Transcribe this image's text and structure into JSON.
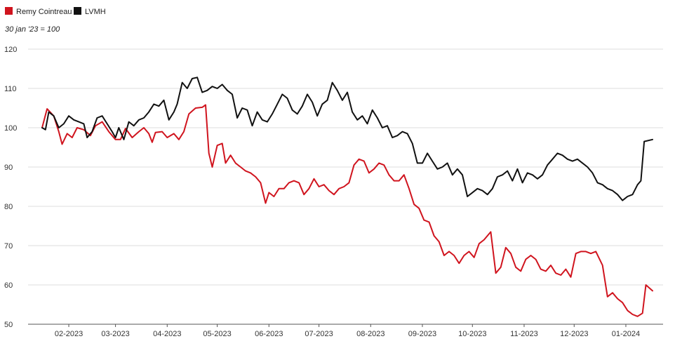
{
  "chart_data": {
    "type": "line",
    "subtitle": "30 jan '23 = 100",
    "xlim": [
      "2023-01-30",
      "2024-01-31"
    ],
    "ylim": [
      50,
      120
    ],
    "y_ticks": [
      50,
      60,
      70,
      80,
      90,
      100,
      110,
      120
    ],
    "x_ticks": [
      {
        "date": "2023-02-15",
        "label": "02-2023"
      },
      {
        "date": "2023-03-15",
        "label": "03-2023"
      },
      {
        "date": "2023-04-15",
        "label": "04-2023"
      },
      {
        "date": "2023-05-15",
        "label": "05-2023"
      },
      {
        "date": "2023-06-15",
        "label": "06-2023"
      },
      {
        "date": "2023-07-15",
        "label": "07-2023"
      },
      {
        "date": "2023-08-15",
        "label": "08-2023"
      },
      {
        "date": "2023-09-15",
        "label": "09-2023"
      },
      {
        "date": "2023-10-15",
        "label": "10-2023"
      },
      {
        "date": "2023-11-15",
        "label": "11-2023"
      },
      {
        "date": "2023-12-15",
        "label": "12-2023"
      },
      {
        "date": "2024-01-15",
        "label": "01-2024"
      }
    ],
    "grid": "horizontal",
    "legend_position": "top-left",
    "series": [
      {
        "name": "Remy Cointreau",
        "color": "#d0141e",
        "points": [
          [
            "2023-01-30",
            100.0
          ],
          [
            "2023-02-02",
            104.8
          ],
          [
            "2023-02-06",
            103.0
          ],
          [
            "2023-02-09",
            99.0
          ],
          [
            "2023-02-11",
            95.8
          ],
          [
            "2023-02-14",
            98.5
          ],
          [
            "2023-02-17",
            97.5
          ],
          [
            "2023-02-20",
            100.0
          ],
          [
            "2023-02-24",
            99.5
          ],
          [
            "2023-02-28",
            98.0
          ],
          [
            "2023-03-03",
            100.5
          ],
          [
            "2023-03-07",
            101.5
          ],
          [
            "2023-03-11",
            99.0
          ],
          [
            "2023-03-15",
            97.0
          ],
          [
            "2023-03-18",
            97.0
          ],
          [
            "2023-03-21",
            99.8
          ],
          [
            "2023-03-25",
            97.5
          ],
          [
            "2023-03-29",
            99.0
          ],
          [
            "2023-04-01",
            100.0
          ],
          [
            "2023-04-04",
            98.5
          ],
          [
            "2023-04-06",
            96.3
          ],
          [
            "2023-04-08",
            98.8
          ],
          [
            "2023-04-12",
            99.0
          ],
          [
            "2023-04-15",
            97.5
          ],
          [
            "2023-04-19",
            98.5
          ],
          [
            "2023-04-22",
            97.0
          ],
          [
            "2023-04-25",
            99.0
          ],
          [
            "2023-04-28",
            103.5
          ],
          [
            "2023-05-02",
            105.0
          ],
          [
            "2023-05-06",
            105.2
          ],
          [
            "2023-05-08",
            105.8
          ],
          [
            "2023-05-10",
            93.5
          ],
          [
            "2023-05-12",
            90.0
          ],
          [
            "2023-05-15",
            95.5
          ],
          [
            "2023-05-18",
            96.0
          ],
          [
            "2023-05-20",
            91.0
          ],
          [
            "2023-05-23",
            93.0
          ],
          [
            "2023-05-26",
            91.0
          ],
          [
            "2023-05-29",
            90.0
          ],
          [
            "2023-06-01",
            89.0
          ],
          [
            "2023-06-04",
            88.5
          ],
          [
            "2023-06-07",
            87.5
          ],
          [
            "2023-06-10",
            86.0
          ],
          [
            "2023-06-13",
            80.8
          ],
          [
            "2023-06-15",
            83.5
          ],
          [
            "2023-06-18",
            82.5
          ],
          [
            "2023-06-21",
            84.5
          ],
          [
            "2023-06-24",
            84.5
          ],
          [
            "2023-06-27",
            86.0
          ],
          [
            "2023-06-30",
            86.5
          ],
          [
            "2023-07-03",
            86.0
          ],
          [
            "2023-07-06",
            83.0
          ],
          [
            "2023-07-09",
            84.5
          ],
          [
            "2023-07-12",
            87.0
          ],
          [
            "2023-07-15",
            85.0
          ],
          [
            "2023-07-18",
            85.5
          ],
          [
            "2023-07-21",
            84.0
          ],
          [
            "2023-07-24",
            83.0
          ],
          [
            "2023-07-27",
            84.5
          ],
          [
            "2023-07-30",
            85.0
          ],
          [
            "2023-08-02",
            86.0
          ],
          [
            "2023-08-05",
            90.5
          ],
          [
            "2023-08-08",
            92.0
          ],
          [
            "2023-08-11",
            91.5
          ],
          [
            "2023-08-14",
            88.5
          ],
          [
            "2023-08-17",
            89.5
          ],
          [
            "2023-08-20",
            91.0
          ],
          [
            "2023-08-23",
            90.5
          ],
          [
            "2023-08-26",
            88.0
          ],
          [
            "2023-08-29",
            86.5
          ],
          [
            "2023-09-01",
            86.5
          ],
          [
            "2023-09-04",
            88.0
          ],
          [
            "2023-09-07",
            84.5
          ],
          [
            "2023-09-10",
            80.5
          ],
          [
            "2023-09-13",
            79.5
          ],
          [
            "2023-09-16",
            76.5
          ],
          [
            "2023-09-19",
            76.0
          ],
          [
            "2023-09-22",
            72.5
          ],
          [
            "2023-09-25",
            71.0
          ],
          [
            "2023-09-28",
            67.5
          ],
          [
            "2023-10-01",
            68.5
          ],
          [
            "2023-10-04",
            67.5
          ],
          [
            "2023-10-07",
            65.5
          ],
          [
            "2023-10-10",
            67.5
          ],
          [
            "2023-10-13",
            68.5
          ],
          [
            "2023-10-16",
            67.0
          ],
          [
            "2023-10-19",
            70.5
          ],
          [
            "2023-10-22",
            71.5
          ],
          [
            "2023-10-26",
            73.5
          ],
          [
            "2023-10-29",
            63.0
          ],
          [
            "2023-11-01",
            64.5
          ],
          [
            "2023-11-04",
            69.5
          ],
          [
            "2023-11-07",
            68.0
          ],
          [
            "2023-11-10",
            64.5
          ],
          [
            "2023-11-13",
            63.5
          ],
          [
            "2023-11-16",
            66.5
          ],
          [
            "2023-11-19",
            67.5
          ],
          [
            "2023-11-22",
            66.5
          ],
          [
            "2023-11-25",
            64.0
          ],
          [
            "2023-11-28",
            63.5
          ],
          [
            "2023-12-01",
            65.0
          ],
          [
            "2023-12-04",
            63.0
          ],
          [
            "2023-12-07",
            62.5
          ],
          [
            "2023-12-10",
            64.0
          ],
          [
            "2023-12-13",
            62.0
          ],
          [
            "2023-12-16",
            68.0
          ],
          [
            "2023-12-19",
            68.5
          ],
          [
            "2023-12-22",
            68.5
          ],
          [
            "2023-12-25",
            68.0
          ],
          [
            "2023-12-28",
            68.5
          ],
          [
            "2024-01-01",
            65.0
          ],
          [
            "2024-01-04",
            57.0
          ],
          [
            "2024-01-07",
            58.0
          ],
          [
            "2024-01-10",
            56.5
          ],
          [
            "2024-01-13",
            55.5
          ],
          [
            "2024-01-16",
            53.5
          ],
          [
            "2024-01-19",
            52.5
          ],
          [
            "2024-01-22",
            52.0
          ],
          [
            "2024-01-25",
            52.8
          ],
          [
            "2024-01-27",
            60.0
          ],
          [
            "2024-01-31",
            58.5
          ]
        ]
      },
      {
        "name": "LVMH",
        "color": "#111111",
        "points": [
          [
            "2023-01-30",
            100.0
          ],
          [
            "2023-02-01",
            99.5
          ],
          [
            "2023-02-03",
            104.0
          ],
          [
            "2023-02-06",
            103.0
          ],
          [
            "2023-02-09",
            100.0
          ],
          [
            "2023-02-12",
            101.0
          ],
          [
            "2023-02-15",
            103.0
          ],
          [
            "2023-02-18",
            102.0
          ],
          [
            "2023-02-21",
            101.5
          ],
          [
            "2023-02-24",
            101.0
          ],
          [
            "2023-02-26",
            97.5
          ],
          [
            "2023-03-01",
            99.0
          ],
          [
            "2023-03-04",
            102.5
          ],
          [
            "2023-03-07",
            103.0
          ],
          [
            "2023-03-10",
            101.0
          ],
          [
            "2023-03-13",
            99.0
          ],
          [
            "2023-03-15",
            97.5
          ],
          [
            "2023-03-17",
            100.0
          ],
          [
            "2023-03-20",
            97.0
          ],
          [
            "2023-03-23",
            101.5
          ],
          [
            "2023-03-26",
            100.5
          ],
          [
            "2023-03-29",
            102.0
          ],
          [
            "2023-04-01",
            102.5
          ],
          [
            "2023-04-04",
            104.0
          ],
          [
            "2023-04-07",
            106.0
          ],
          [
            "2023-04-10",
            105.5
          ],
          [
            "2023-04-13",
            107.0
          ],
          [
            "2023-04-16",
            102.0
          ],
          [
            "2023-04-19",
            104.0
          ],
          [
            "2023-04-21",
            106.0
          ],
          [
            "2023-04-24",
            111.5
          ],
          [
            "2023-04-27",
            110.0
          ],
          [
            "2023-04-30",
            112.5
          ],
          [
            "2023-05-03",
            112.8
          ],
          [
            "2023-05-06",
            109.0
          ],
          [
            "2023-05-09",
            109.5
          ],
          [
            "2023-05-12",
            110.5
          ],
          [
            "2023-05-15",
            110.0
          ],
          [
            "2023-05-18",
            111.0
          ],
          [
            "2023-05-21",
            109.5
          ],
          [
            "2023-05-24",
            108.5
          ],
          [
            "2023-05-27",
            102.5
          ],
          [
            "2023-05-30",
            105.0
          ],
          [
            "2023-06-02",
            104.5
          ],
          [
            "2023-06-05",
            100.5
          ],
          [
            "2023-06-08",
            104.0
          ],
          [
            "2023-06-11",
            102.0
          ],
          [
            "2023-06-14",
            101.5
          ],
          [
            "2023-06-17",
            103.5
          ],
          [
            "2023-06-20",
            106.0
          ],
          [
            "2023-06-23",
            108.5
          ],
          [
            "2023-06-26",
            107.5
          ],
          [
            "2023-06-29",
            104.5
          ],
          [
            "2023-07-02",
            103.5
          ],
          [
            "2023-07-05",
            105.5
          ],
          [
            "2023-07-08",
            108.5
          ],
          [
            "2023-07-11",
            106.5
          ],
          [
            "2023-07-14",
            103.0
          ],
          [
            "2023-07-17",
            106.0
          ],
          [
            "2023-07-20",
            107.0
          ],
          [
            "2023-07-23",
            111.5
          ],
          [
            "2023-07-26",
            109.5
          ],
          [
            "2023-07-29",
            107.0
          ],
          [
            "2023-08-01",
            109.0
          ],
          [
            "2023-08-04",
            104.0
          ],
          [
            "2023-08-07",
            102.0
          ],
          [
            "2023-08-10",
            103.0
          ],
          [
            "2023-08-13",
            101.0
          ],
          [
            "2023-08-16",
            104.5
          ],
          [
            "2023-08-19",
            102.5
          ],
          [
            "2023-08-22",
            100.0
          ],
          [
            "2023-08-25",
            100.5
          ],
          [
            "2023-08-28",
            97.5
          ],
          [
            "2023-08-31",
            98.0
          ],
          [
            "2023-09-03",
            99.0
          ],
          [
            "2023-09-06",
            98.5
          ],
          [
            "2023-09-09",
            96.0
          ],
          [
            "2023-09-12",
            91.0
          ],
          [
            "2023-09-15",
            91.0
          ],
          [
            "2023-09-18",
            93.5
          ],
          [
            "2023-09-21",
            91.5
          ],
          [
            "2023-09-24",
            89.5
          ],
          [
            "2023-09-27",
            90.0
          ],
          [
            "2023-09-30",
            91.0
          ],
          [
            "2023-10-03",
            88.0
          ],
          [
            "2023-10-06",
            89.5
          ],
          [
            "2023-10-09",
            88.0
          ],
          [
            "2023-10-12",
            82.5
          ],
          [
            "2023-10-15",
            83.5
          ],
          [
            "2023-10-18",
            84.5
          ],
          [
            "2023-10-21",
            84.0
          ],
          [
            "2023-10-24",
            83.0
          ],
          [
            "2023-10-27",
            84.5
          ],
          [
            "2023-10-30",
            87.5
          ],
          [
            "2023-11-02",
            88.0
          ],
          [
            "2023-11-05",
            89.0
          ],
          [
            "2023-11-08",
            86.5
          ],
          [
            "2023-11-11",
            89.5
          ],
          [
            "2023-11-14",
            86.0
          ],
          [
            "2023-11-17",
            88.5
          ],
          [
            "2023-11-20",
            88.0
          ],
          [
            "2023-11-23",
            87.0
          ],
          [
            "2023-11-26",
            88.0
          ],
          [
            "2023-11-29",
            90.5
          ],
          [
            "2023-12-02",
            92.0
          ],
          [
            "2023-12-05",
            93.5
          ],
          [
            "2023-12-08",
            93.0
          ],
          [
            "2023-12-11",
            92.0
          ],
          [
            "2023-12-14",
            91.5
          ],
          [
            "2023-12-17",
            92.0
          ],
          [
            "2023-12-20",
            91.0
          ],
          [
            "2023-12-23",
            90.0
          ],
          [
            "2023-12-26",
            88.5
          ],
          [
            "2023-12-29",
            86.0
          ],
          [
            "2024-01-01",
            85.5
          ],
          [
            "2024-01-04",
            84.5
          ],
          [
            "2024-01-07",
            84.0
          ],
          [
            "2024-01-10",
            83.0
          ],
          [
            "2024-01-13",
            81.5
          ],
          [
            "2024-01-16",
            82.5
          ],
          [
            "2024-01-19",
            83.0
          ],
          [
            "2024-01-22",
            85.5
          ],
          [
            "2024-01-24",
            86.5
          ],
          [
            "2024-01-26",
            96.5
          ],
          [
            "2024-01-31",
            97.0
          ]
        ]
      }
    ]
  }
}
